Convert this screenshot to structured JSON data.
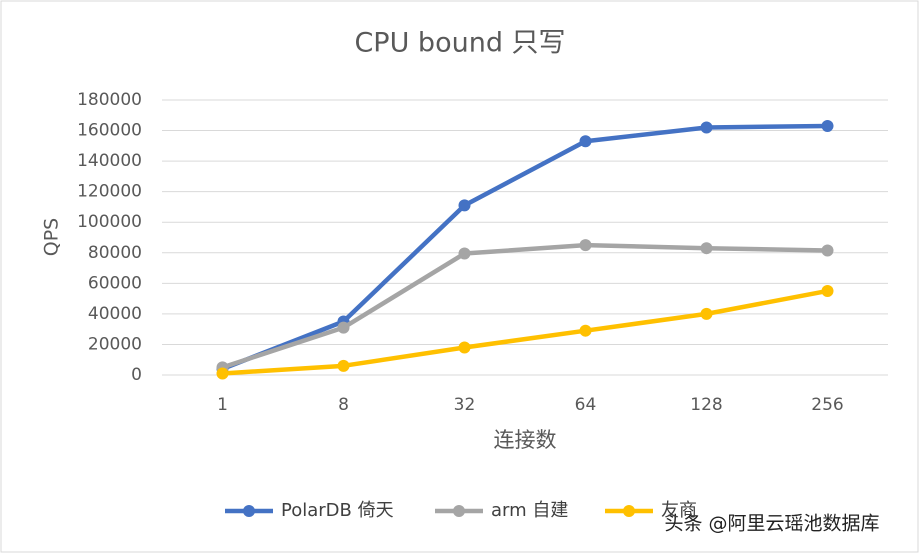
{
  "chart_data": {
    "type": "line",
    "title": "CPU bound 只写",
    "y_label": "QPS",
    "x_label": "连接数",
    "categories": [
      "1",
      "8",
      "32",
      "64",
      "128",
      "256"
    ],
    "series": [
      {
        "name": "PolarDB 倚天",
        "color": "#4472c4",
        "values": [
          4000,
          35000,
          111000,
          153000,
          162000,
          163000
        ]
      },
      {
        "name": "arm 自建",
        "color": "#a5a5a5",
        "values": [
          5000,
          31000,
          79500,
          85000,
          83000,
          81500
        ]
      },
      {
        "name": "友商",
        "color": "#ffc000",
        "values": [
          1000,
          6000,
          18000,
          29000,
          40000,
          55000
        ]
      }
    ],
    "ylim": [
      0,
      180000
    ],
    "yticks": [
      0,
      20000,
      40000,
      60000,
      80000,
      100000,
      120000,
      140000,
      160000,
      180000
    ],
    "grid": true,
    "legend": "bottom",
    "watermark": "头条 @阿里云瑶池数据库"
  }
}
